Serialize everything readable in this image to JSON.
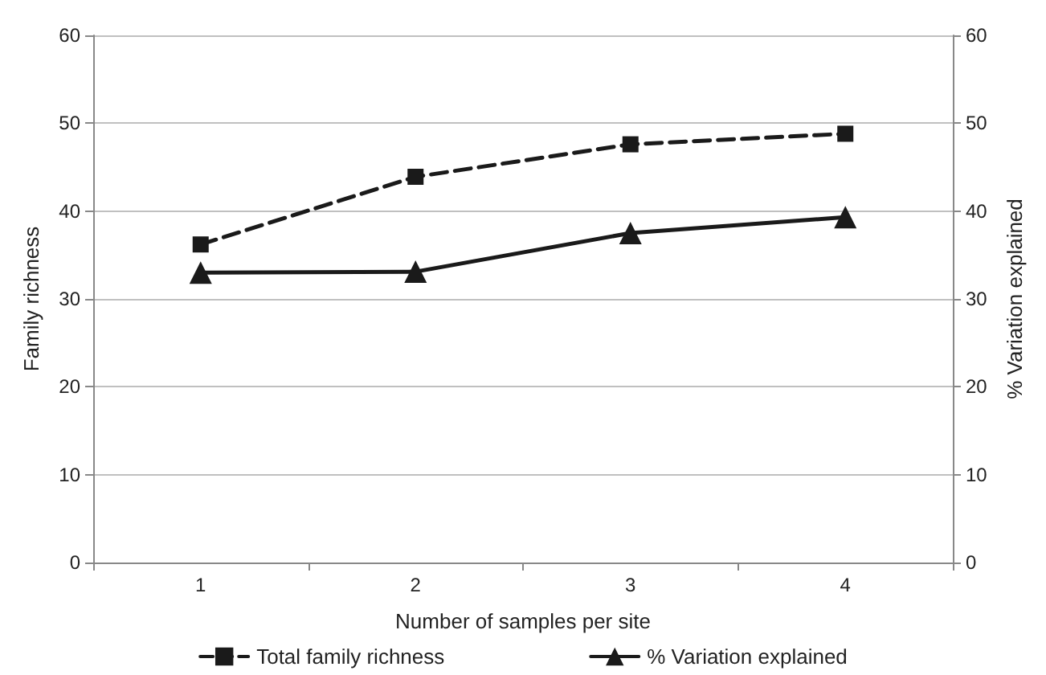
{
  "chart_data": {
    "type": "line",
    "xlabel": "Number of samples per site",
    "ylabel": "Family richness",
    "y2label": "% Variation explained",
    "categories": [
      "1",
      "2",
      "3",
      "4"
    ],
    "series": [
      {
        "name": "Total family richness",
        "color": "#1a1a1a",
        "values": [
          36.2,
          43.9,
          47.6,
          48.8
        ],
        "marker": "square",
        "line_style": "dashed"
      },
      {
        "name": "% Variation explained",
        "color": "#1a1a1a",
        "values": [
          33.0,
          33.1,
          37.5,
          39.3
        ],
        "marker": "triangle",
        "line_style": "solid",
        "axis": "y2"
      }
    ],
    "ylim": [
      0,
      60
    ],
    "yticks": [
      0,
      10,
      20,
      30,
      40,
      50,
      60
    ],
    "y2lim": [
      0,
      60
    ],
    "y2ticks": [
      0,
      10,
      20,
      30,
      40,
      50,
      60
    ],
    "grid": "y",
    "legend": "bottom"
  }
}
